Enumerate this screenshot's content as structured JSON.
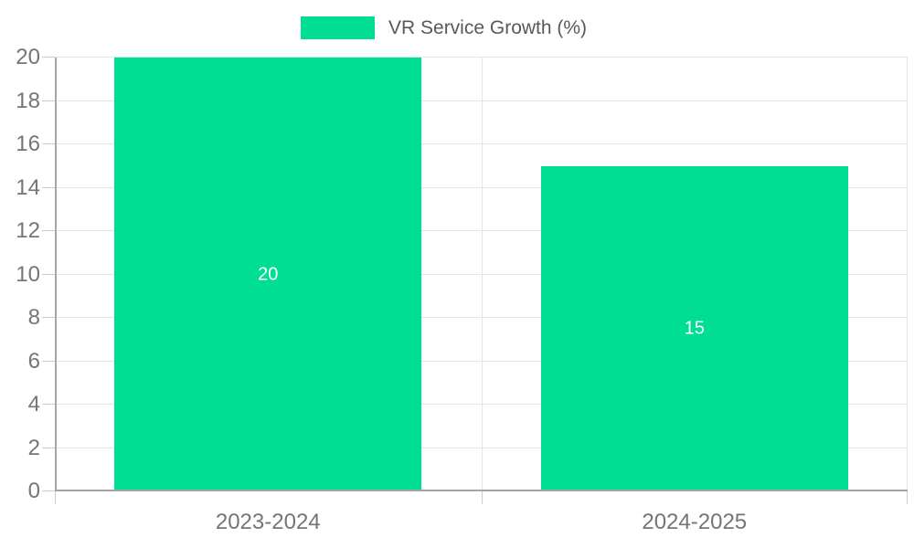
{
  "chart_data": {
    "type": "bar",
    "title": "VR Service Growth (%)",
    "legend_label": "VR Service Growth (%)",
    "legend_position": "top-center",
    "categories": [
      "2023-2024",
      "2024-2025"
    ],
    "series": [
      {
        "name": "VR Service Growth (%)",
        "values": [
          20,
          15
        ]
      }
    ],
    "values": [
      20,
      15
    ],
    "value_labels": [
      "20",
      "15"
    ],
    "ylim": [
      0,
      20
    ],
    "ytick_step": 2,
    "ytick_labels": [
      "0",
      "2",
      "4",
      "6",
      "8",
      "10",
      "12",
      "14",
      "16",
      "18",
      "20"
    ],
    "xlabel": "",
    "ylabel": "",
    "grid": true,
    "colors": {
      "bar": "#00DE94",
      "grid": "#e5e5e5",
      "axis": "#a5a5a5",
      "tick": "#cccccc",
      "axis_text": "#757575",
      "legend_text": "#595959",
      "value_text": "#ffffff",
      "background": "#ffffff"
    }
  }
}
